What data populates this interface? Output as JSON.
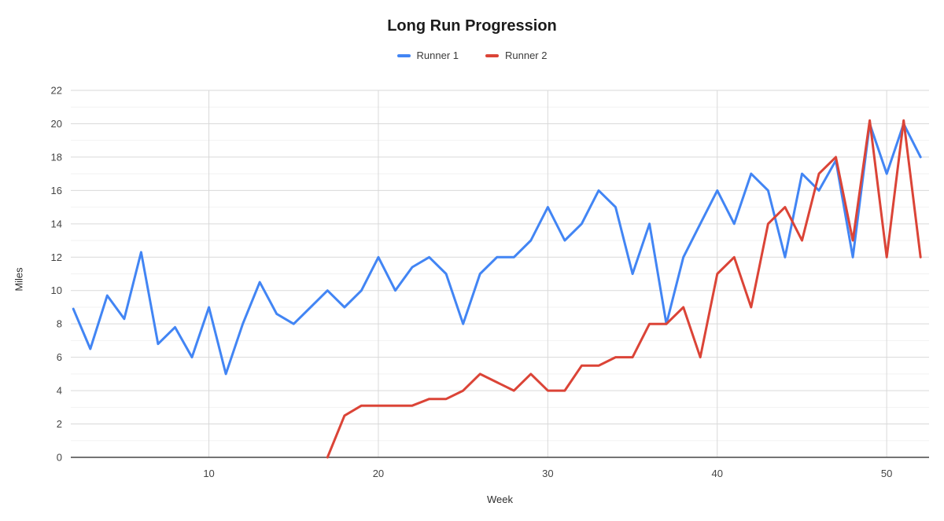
{
  "chart_data": {
    "type": "line",
    "title": "Long Run Progression",
    "xlabel": "Week",
    "ylabel": "Miles",
    "legend_position": "top",
    "grid": "major-and-minor-horizontal, vertical-at-x-ticks",
    "xlim": [
      1.85,
      52.5
    ],
    "ylim": [
      0,
      22
    ],
    "x_ticks": [
      10,
      20,
      30,
      40,
      50
    ],
    "y_ticks": [
      0,
      2,
      4,
      6,
      8,
      10,
      12,
      14,
      16,
      18,
      20,
      22
    ],
    "style": {
      "grid_major_color": "#d9d9d9",
      "grid_minor_color": "#f2f2f2",
      "baseline_color": "#474747",
      "tick_text_color": "#444444",
      "line_width": 3
    },
    "series": [
      {
        "name": "Runner 1",
        "color": "#4285F4",
        "x": [
          2,
          3,
          4,
          5,
          6,
          7,
          8,
          9,
          10,
          11,
          12,
          13,
          14,
          15,
          16,
          17,
          18,
          19,
          20,
          21,
          22,
          23,
          24,
          25,
          26,
          27,
          28,
          29,
          30,
          31,
          32,
          33,
          34,
          35,
          36,
          37,
          38,
          39,
          40,
          41,
          42,
          43,
          44,
          45,
          46,
          47,
          48,
          49,
          50,
          51,
          52
        ],
        "y": [
          8.9,
          6.5,
          9.7,
          8.3,
          12.3,
          6.8,
          7.8,
          6,
          9,
          5,
          8,
          10.5,
          8.6,
          8,
          9,
          10,
          9,
          10,
          12,
          10,
          11.4,
          12,
          11,
          8,
          11,
          12,
          12,
          13,
          15,
          13,
          14,
          16,
          15,
          11,
          14,
          8,
          12,
          14,
          16,
          14,
          17,
          16,
          12,
          17,
          16,
          17.8,
          12,
          20,
          17,
          20,
          18
        ]
      },
      {
        "name": "Runner 2",
        "color": "#DB4437",
        "x": [
          17,
          18,
          19,
          20,
          21,
          22,
          23,
          24,
          25,
          26,
          27,
          28,
          29,
          30,
          31,
          32,
          33,
          34,
          35,
          36,
          37,
          38,
          39,
          40,
          41,
          42,
          43,
          44,
          45,
          46,
          47,
          48,
          49,
          50,
          51,
          52
        ],
        "y": [
          0,
          2.5,
          3.1,
          3.1,
          3.1,
          3.1,
          3.5,
          3.5,
          4,
          5,
          4.5,
          4,
          5,
          4,
          4,
          5.5,
          5.5,
          6,
          6,
          8,
          8,
          9,
          6,
          11,
          12,
          9,
          14,
          15,
          13,
          17,
          18,
          13,
          20.2,
          12,
          20.2,
          12
        ]
      }
    ]
  }
}
